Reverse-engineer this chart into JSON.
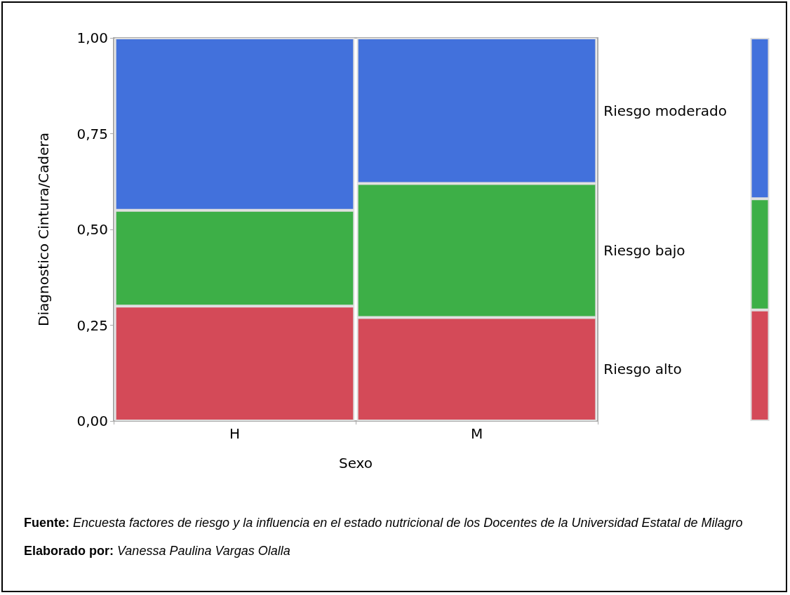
{
  "chart_data": {
    "type": "bar",
    "stacked": true,
    "xlabel": "Sexo",
    "ylabel": "Diagnostico Cintura/Cadera",
    "categories": [
      "H",
      "M",
      null
    ],
    "series": [
      {
        "name": "Riesgo alto",
        "color": "#d44a58",
        "values": [
          0.3,
          0.27,
          0.29
        ]
      },
      {
        "name": "Riesgo bajo",
        "color": "#3daf47",
        "values": [
          0.25,
          0.35,
          0.29
        ]
      },
      {
        "name": "Riesgo moderado",
        "color": "#4271dc",
        "values": [
          0.45,
          0.38,
          0.42
        ]
      }
    ],
    "ylim": [
      0,
      1
    ],
    "yticks": [
      {
        "value": 0,
        "label": "0,00"
      },
      {
        "value": 0.25,
        "label": "0,25"
      },
      {
        "value": 0.5,
        "label": "0,50"
      },
      {
        "value": 0.75,
        "label": "0,75"
      },
      {
        "value": 1,
        "label": "1,00"
      }
    ],
    "grid": false,
    "legend": false,
    "annotations": [
      "Fuente: Encuesta factores de riesgo y la influencia en el estado nutricional de los Docentes de la Universidad Estatal de Milagro",
      "Elaborado por: Vanessa Paulina Vargas Olalla"
    ]
  }
}
